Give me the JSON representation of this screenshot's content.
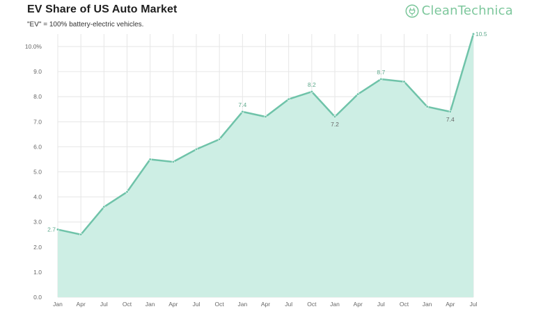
{
  "header": {
    "title": "EV Share of US Auto Market",
    "subtitle": "\"EV\" = 100% battery-electric vehicles.",
    "logo_text": "CleanTechnica",
    "logo_icon": "plug-icon"
  },
  "colors": {
    "line": "#6fc3a9",
    "fill": "#cdeee4",
    "grid": "#e6e6e6",
    "axis_text": "#666666",
    "logo": "#7dc79c"
  },
  "chart_data": {
    "type": "area",
    "title": "EV Share of US Auto Market",
    "subtitle": "\"EV\" = 100% battery-electric vehicles.",
    "xlabel": "",
    "ylabel": "",
    "ylim": [
      0,
      10.5
    ],
    "yticks": [
      0.0,
      1.0,
      2.0,
      3.0,
      4.0,
      5.0,
      6.0,
      7.0,
      8.0,
      9.0,
      10.0
    ],
    "ytick_labels": [
      "0.0",
      "1.0",
      "2.0",
      "3.0",
      "4.0",
      "5.0",
      "6.0",
      "7.0",
      "8.0",
      "9.0",
      "10.0%"
    ],
    "grid": true,
    "legend": "none",
    "categories": [
      "Jan",
      "Apr",
      "Jul",
      "Oct",
      "Jan",
      "Apr",
      "Jul",
      "Oct",
      "Jan",
      "Apr",
      "Jul",
      "Oct",
      "Jan",
      "Apr",
      "Jul",
      "Oct",
      "Jan",
      "Apr",
      "Jul"
    ],
    "series": [
      {
        "values": [
          2.7,
          2.5,
          3.6,
          4.2,
          5.5,
          5.4,
          5.9,
          6.3,
          7.4,
          7.2,
          7.9,
          8.2,
          7.2,
          8.1,
          8.7,
          8.6,
          7.6,
          7.4,
          10.5
        ]
      }
    ],
    "data_labels": [
      {
        "index": 0,
        "text": "2.7",
        "position": "left"
      },
      {
        "index": 8,
        "text": "7.4",
        "position": "above"
      },
      {
        "index": 11,
        "text": "8.2",
        "position": "above"
      },
      {
        "index": 12,
        "text": "7.2",
        "position": "below"
      },
      {
        "index": 14,
        "text": "8.7",
        "position": "above"
      },
      {
        "index": 17,
        "text": "7.4",
        "position": "below"
      },
      {
        "index": 18,
        "text": "10.5",
        "position": "right"
      }
    ]
  }
}
